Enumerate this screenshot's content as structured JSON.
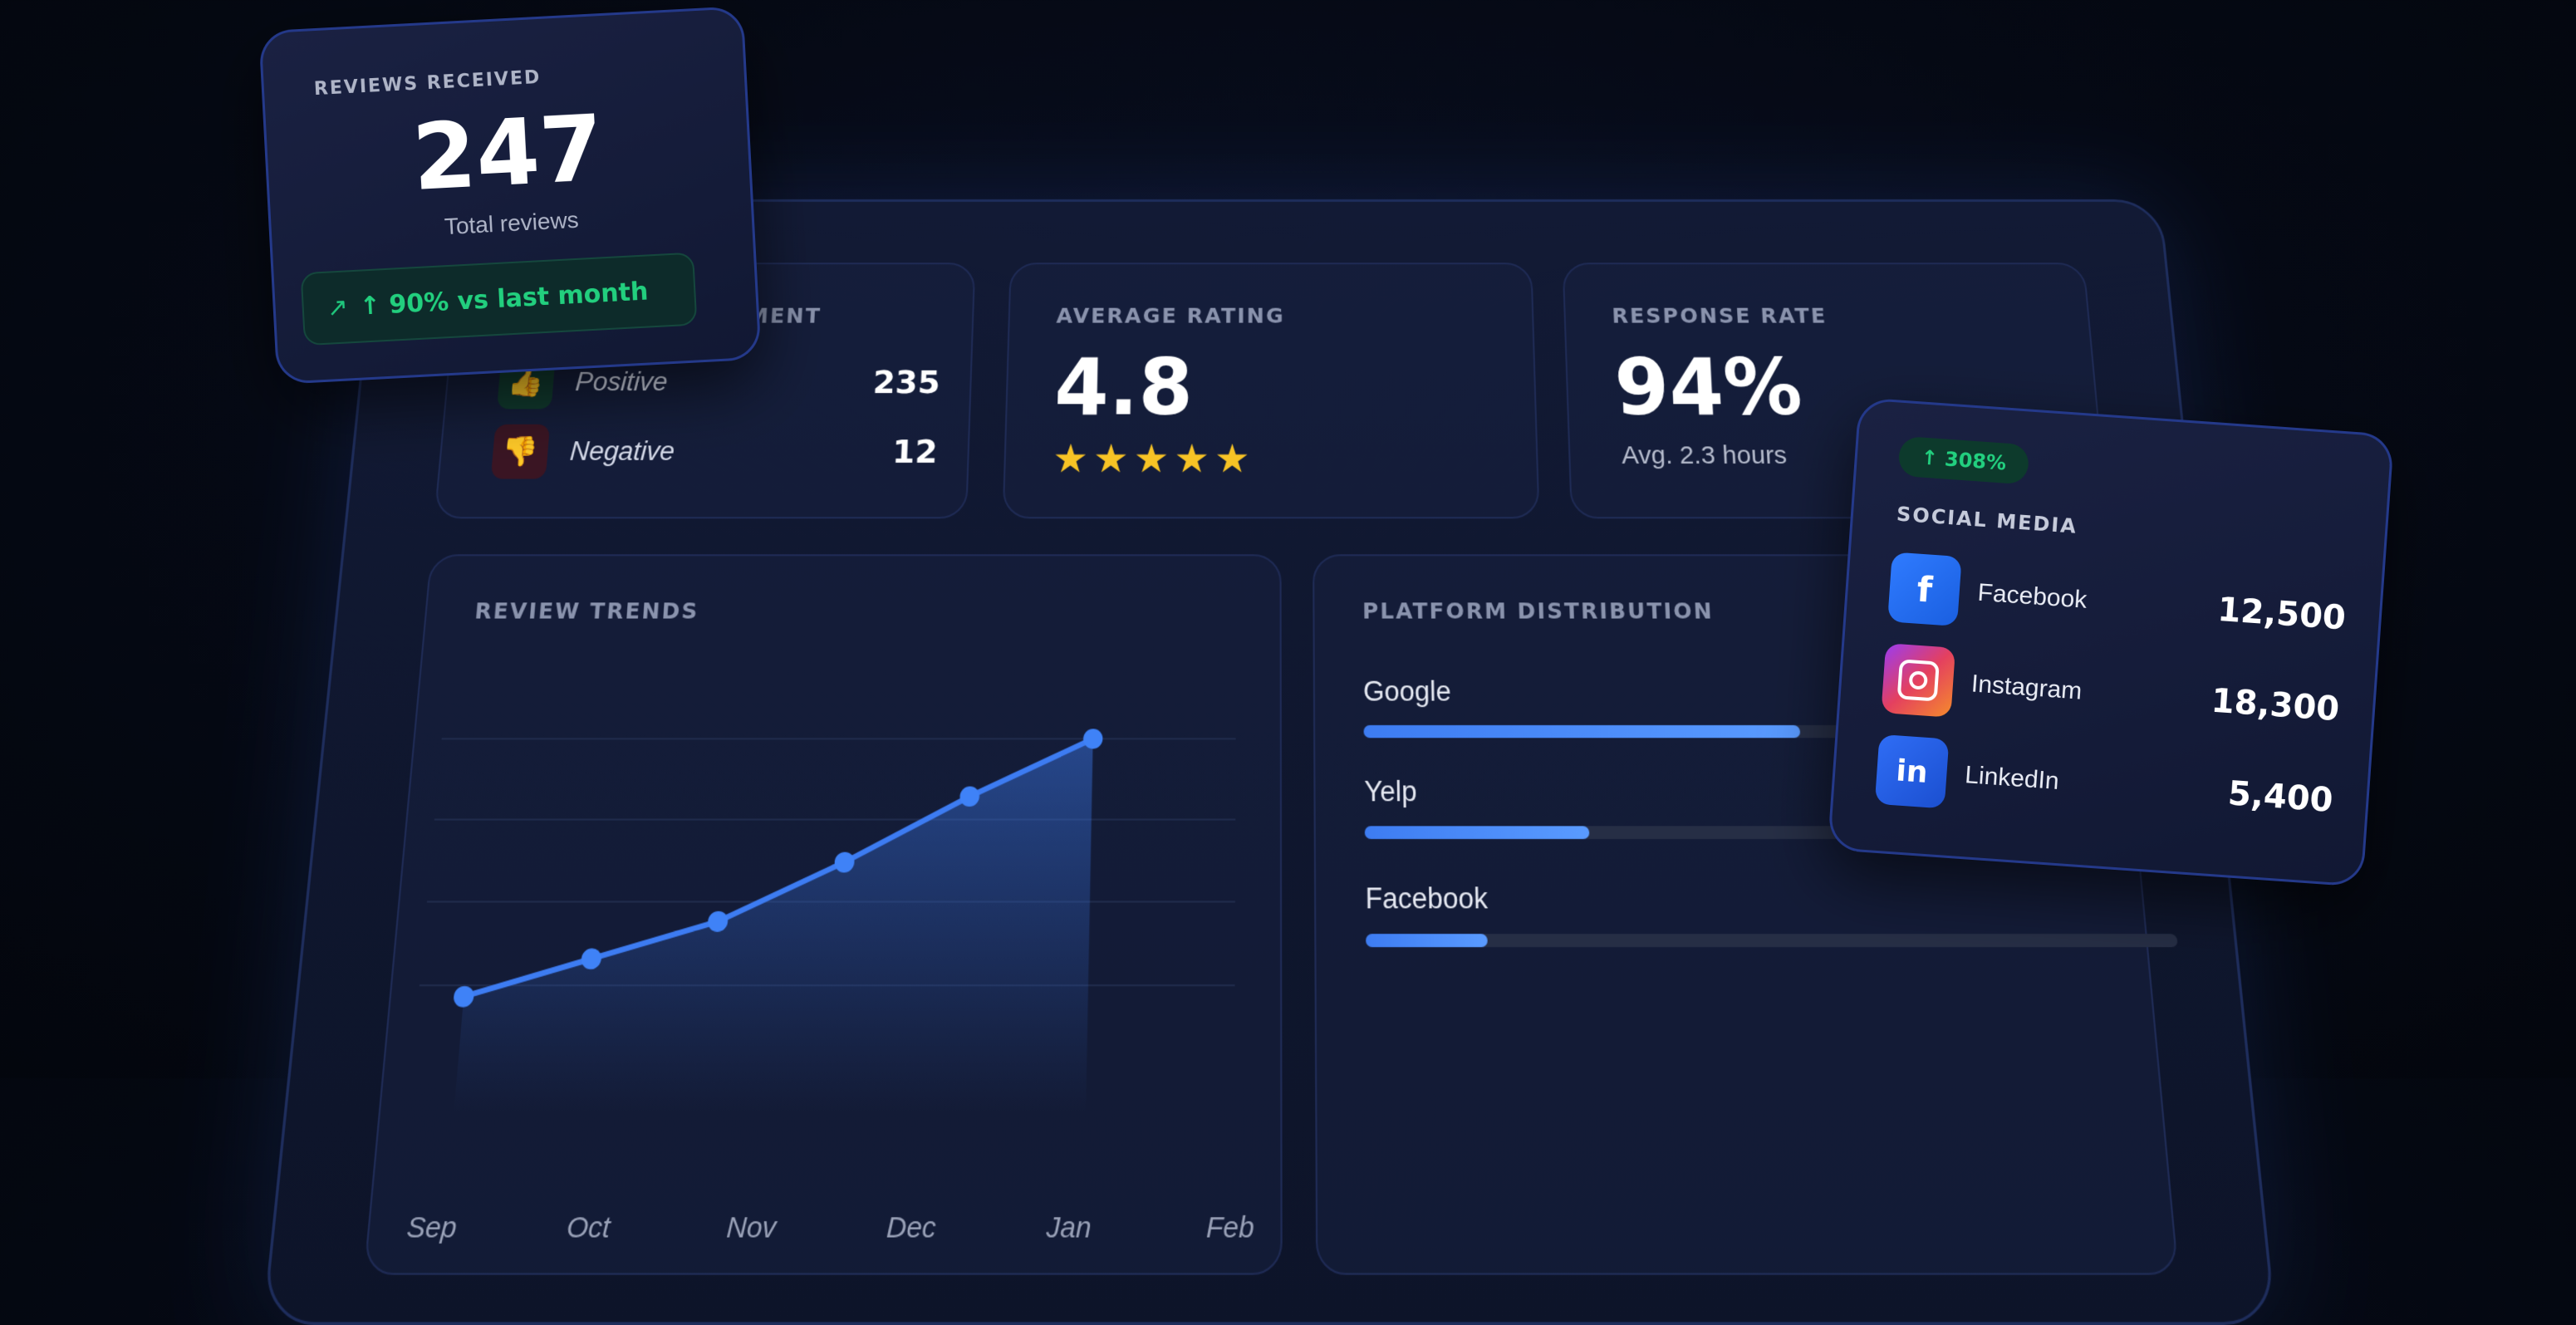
{
  "reviews_card": {
    "title": "REVIEWS RECEIVED",
    "count": "247",
    "subtitle": "Total reviews",
    "trend": "↑ 90% vs last month"
  },
  "sentiment": {
    "title_fragment": "MENT",
    "items": [
      {
        "label": "Positive",
        "value": "235",
        "icon": "thumbs-up-icon",
        "color": "#1fc77d"
      },
      {
        "label": "Negative",
        "value": "12",
        "icon": "thumbs-down-icon",
        "color": "#e0465a"
      }
    ]
  },
  "average_rating": {
    "title": "AVERAGE RATING",
    "value": "4.8",
    "stars": 5
  },
  "response_rate": {
    "title": "RESPONSE RATE",
    "value": "94%",
    "subtitle": "Avg. 2.3 hours"
  },
  "review_trends": {
    "title": "REVIEW TRENDS",
    "accent": "#3d7cf2"
  },
  "platform_distribution": {
    "title": "PLATFORM DISTRIBUTION",
    "items": [
      {
        "name": "Google",
        "fraction": 0.55
      },
      {
        "name": "Yelp",
        "fraction": 0.28
      },
      {
        "name": "Facebook",
        "fraction": 0.15
      }
    ]
  },
  "social_card": {
    "badge": "↑ 308%",
    "title": "SOCIAL MEDIA",
    "items": [
      {
        "name": "Facebook",
        "value": "12,500",
        "icon": "facebook-icon"
      },
      {
        "name": "Instagram",
        "value": "18,300",
        "icon": "instagram-icon"
      },
      {
        "name": "LinkedIn",
        "value": "5,400",
        "icon": "linkedin-icon"
      }
    ]
  },
  "chart_data": {
    "type": "line",
    "categories": [
      "Sep",
      "Oct",
      "Nov",
      "Dec",
      "Jan",
      "Feb"
    ],
    "series": [
      {
        "values": [
          1,
          2,
          3,
          4.6,
          6.4,
          8
        ]
      }
    ],
    "xlabel": "",
    "ylabel": "",
    "grid": true
  }
}
